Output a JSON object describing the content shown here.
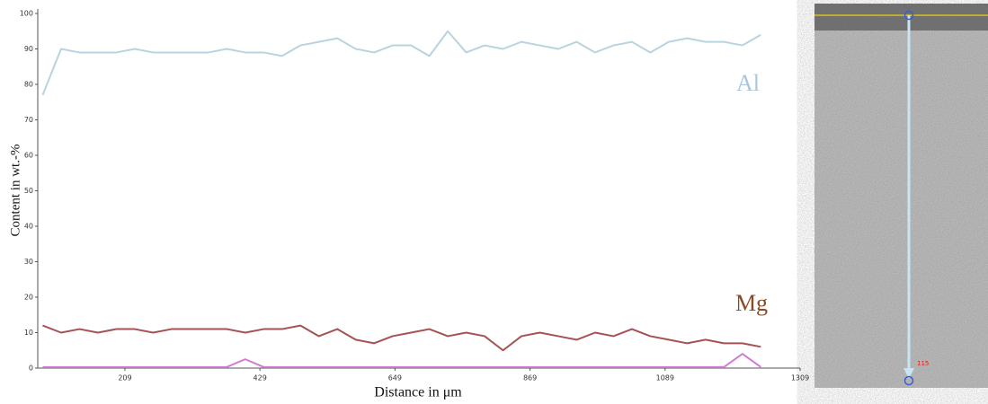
{
  "chart_data": {
    "type": "line",
    "x_label": "Distance in μm",
    "y_label": "Content in wt.-%",
    "x": [
      75,
      105,
      135,
      165,
      195,
      225,
      255,
      285,
      315,
      345,
      375,
      405,
      435,
      465,
      495,
      525,
      555,
      585,
      615,
      645,
      675,
      705,
      735,
      765,
      795,
      825,
      855,
      885,
      915,
      945,
      975,
      1005,
      1035,
      1065,
      1095,
      1125,
      1155,
      1185,
      1215,
      1245
    ],
    "series": [
      {
        "name": "Al",
        "color": "#b9d3df",
        "label_color": "#a9c6dc",
        "values": [
          77,
          90,
          89,
          89,
          89,
          90,
          89,
          89,
          89,
          89,
          90,
          89,
          89,
          88,
          91,
          92,
          93,
          90,
          89,
          91,
          91,
          88,
          95,
          89,
          91,
          90,
          92,
          91,
          90,
          92,
          89,
          91,
          92,
          89,
          92,
          93,
          92,
          92,
          91,
          94
        ]
      },
      {
        "name": "Mg",
        "color": "#a65254",
        "label_color": "#8a4a24",
        "values": [
          12,
          10,
          11,
          10,
          11,
          11,
          10,
          11,
          11,
          11,
          11,
          10,
          11,
          11,
          12,
          9,
          11,
          8,
          7,
          9,
          10,
          11,
          9,
          10,
          9,
          5,
          9,
          10,
          9,
          8,
          10,
          9,
          11,
          9,
          8,
          7,
          8,
          7,
          7,
          6
        ]
      },
      {
        "color": "#d27ad6",
        "values": [
          0.3,
          0.3,
          0.3,
          0.3,
          0.3,
          0.3,
          0.3,
          0.3,
          0.3,
          0.3,
          0.3,
          2.5,
          0.3,
          0.3,
          0.3,
          0.3,
          0.3,
          0.3,
          0.3,
          0.3,
          0.3,
          0.3,
          0.3,
          0.3,
          0.3,
          0.3,
          0.3,
          0.3,
          0.3,
          0.3,
          0.3,
          0.3,
          0.3,
          0.3,
          0.3,
          0.3,
          0.3,
          0.3,
          4,
          0.3
        ]
      }
    ],
    "xlim": [
      67,
      1309
    ],
    "xticks": [
      209,
      429,
      649,
      869,
      1089,
      1309
    ],
    "ylim": [
      0,
      100
    ],
    "yticks": [
      0,
      10,
      20,
      30,
      40,
      50,
      60,
      70,
      80,
      90,
      100
    ],
    "image_marker": "115"
  }
}
